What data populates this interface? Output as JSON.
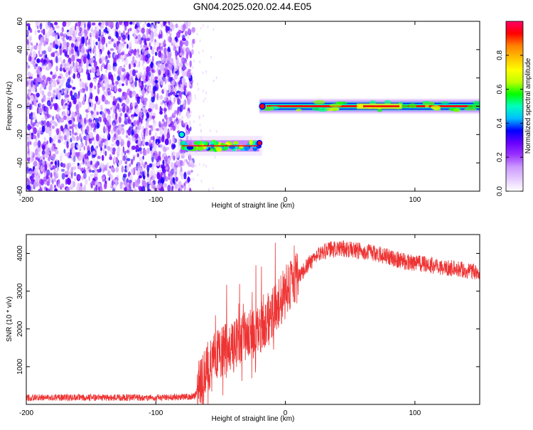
{
  "title": "GN04.2025.020.02.44.E05",
  "chart_data": [
    {
      "type": "heatmap",
      "xlabel": "Height of straight line (km)",
      "ylabel": "Frequency (Hz)",
      "xlim": [
        -200,
        150
      ],
      "ylim": [
        -60,
        60
      ],
      "xticks": [
        -200,
        -100,
        0,
        100
      ],
      "yticks": [
        -60,
        -40,
        -20,
        0,
        20,
        40,
        60
      ],
      "colorbar": {
        "label": "Normalized spectral amplitude",
        "range": [
          0,
          1
        ],
        "ticks": [
          0.0,
          0.2,
          0.4,
          0.6,
          0.8
        ],
        "colormap": [
          "#ffffff",
          "#e6ccff",
          "#cc99ff",
          "#9933ff",
          "#6600ff",
          "#0000ff",
          "#00bfff",
          "#00ffbf",
          "#00ff00",
          "#bfff00",
          "#ffff00",
          "#ffbf00",
          "#ff8000",
          "#ff0000",
          "#ff0066"
        ]
      },
      "regions": [
        {
          "name": "noise",
          "x": [
            -200,
            -75
          ],
          "y": [
            -60,
            60
          ],
          "amplitude": [
            0.0,
            0.3
          ]
        },
        {
          "name": "band-low",
          "x": [
            -83,
            -18
          ],
          "center_hz": -28,
          "amplitude_peak": 0.95
        },
        {
          "name": "band-main",
          "x": [
            -20,
            150
          ],
          "center_hz": 0,
          "amplitude_peak": 1.0
        }
      ]
    },
    {
      "type": "line",
      "xlabel": "Height of straight line (km)",
      "ylabel": "SNR (10 * v/v)",
      "xlim": [
        -200,
        150
      ],
      "ylim": [
        0,
        4500
      ],
      "xticks": [
        -200,
        -100,
        0,
        100
      ],
      "yticks": [
        1000,
        2000,
        3000,
        4000
      ],
      "color": "#ee3333",
      "series": [
        {
          "x": [
            -200,
            -180,
            -160,
            -140,
            -120,
            -100,
            -80,
            -70,
            -65,
            -60,
            -55,
            -50,
            -45,
            -40,
            -35,
            -30,
            -25,
            -20,
            -15,
            -10,
            -5,
            0,
            5,
            10,
            15,
            20,
            25,
            30,
            35,
            40,
            45,
            50,
            60,
            70,
            80,
            90,
            100,
            110,
            120,
            130,
            140,
            150
          ],
          "values": [
            180,
            180,
            185,
            180,
            180,
            180,
            190,
            220,
            600,
            1000,
            1200,
            1400,
            1500,
            1600,
            1700,
            1800,
            1900,
            2000,
            2200,
            2400,
            2700,
            3000,
            3200,
            3400,
            3600,
            3800,
            3950,
            4050,
            4100,
            4120,
            4130,
            4100,
            4050,
            4000,
            3900,
            3800,
            3750,
            3700,
            3650,
            3600,
            3550,
            3500
          ]
        }
      ]
    }
  ]
}
